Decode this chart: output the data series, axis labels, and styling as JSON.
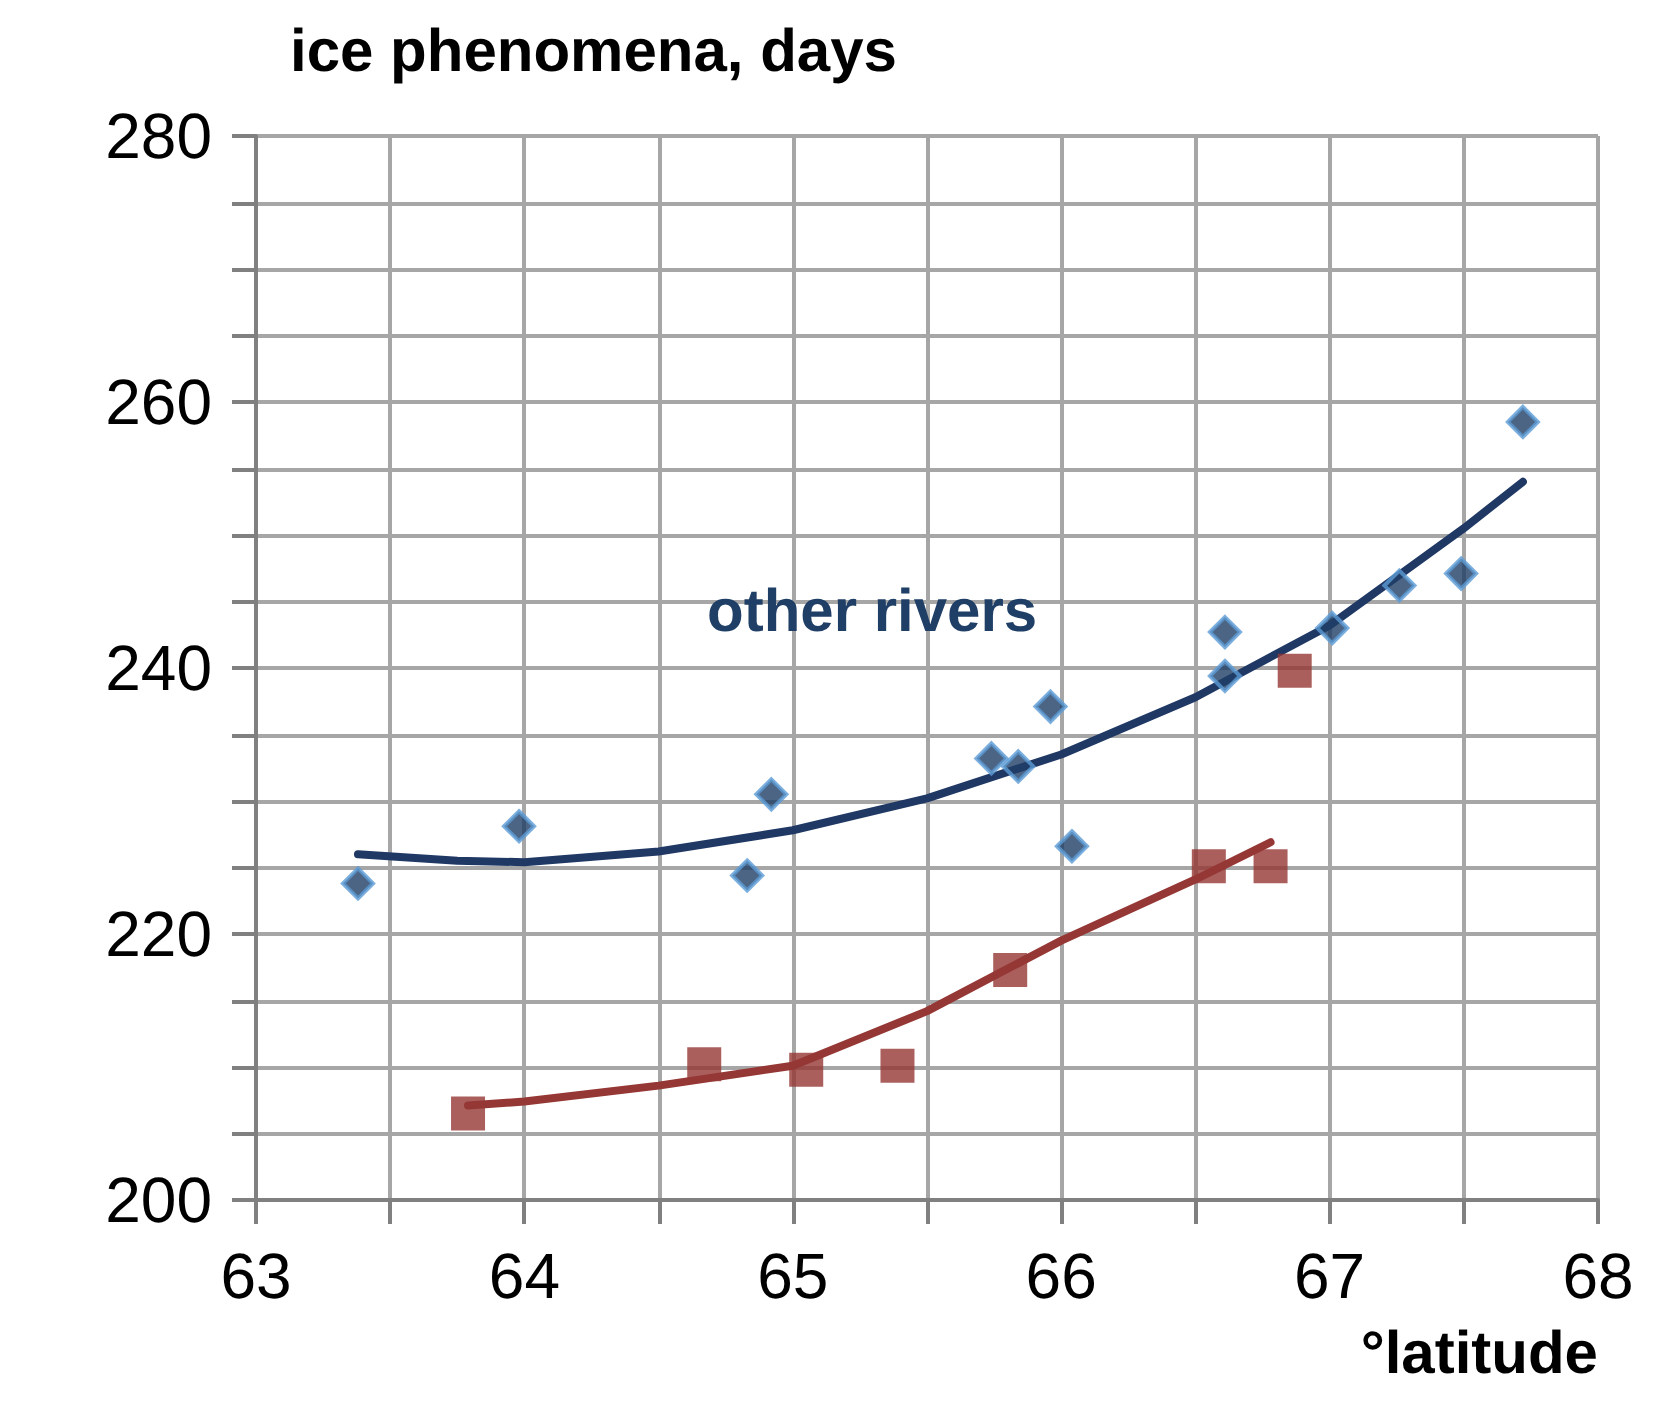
{
  "chart_data": {
    "type": "scatter",
    "title": "ice phenomena, days",
    "xlabel": "°latitude",
    "grid": true,
    "legend": false,
    "xlim": [
      63,
      68
    ],
    "xticks": [
      63,
      {
        "value": 63.5,
        "label": null
      },
      64,
      {
        "value": 64.5,
        "label": null
      },
      65,
      {
        "value": 65.5,
        "label": null
      },
      66,
      {
        "value": 66.5,
        "label": null
      },
      67,
      {
        "value": 67.5,
        "label": null
      },
      68
    ],
    "ylim": [
      200,
      280
    ],
    "yticks": [
      200,
      {
        "value": 205,
        "label": null
      },
      {
        "value": 210,
        "label": null
      },
      {
        "value": 215,
        "label": null
      },
      220,
      {
        "value": 225,
        "label": null
      },
      {
        "value": 230,
        "label": null
      },
      {
        "value": 235,
        "label": null
      },
      240,
      {
        "value": 245,
        "label": null
      },
      {
        "value": 250,
        "label": null
      },
      {
        "value": 255,
        "label": null
      },
      260,
      {
        "value": 265,
        "label": null
      },
      {
        "value": 270,
        "label": null
      },
      {
        "value": 275,
        "label": null
      },
      280
    ],
    "series": [
      {
        "name": "other rivers",
        "type": "scatter",
        "marker": "diamond",
        "color": "#1f3f66",
        "x": [
          63.38,
          63.98,
          64.83,
          64.92,
          65.74,
          65.84,
          65.96,
          66.04,
          66.61,
          66.61,
          67.01,
          67.26,
          67.49,
          67.72
        ],
        "values": [
          223.8,
          228.1,
          224.4,
          230.5,
          233.2,
          232.6,
          237.1,
          226.6,
          242.7,
          239.4,
          243.0,
          246.2,
          247.1,
          258.5
        ]
      },
      {
        "type": "scatter",
        "marker": "square",
        "color": "#953735",
        "x": [
          63.79,
          64.67,
          65.05,
          65.39,
          65.81,
          66.55,
          66.78,
          66.87
        ],
        "values": [
          206.5,
          210.2,
          209.8,
          210.1,
          217.3,
          225.1,
          225.1,
          239.8
        ]
      },
      {
        "type": "line",
        "marker": "none",
        "color": "#1f3864",
        "x": [
          63.38,
          63.75,
          64,
          64.5,
          65,
          65.5,
          66,
          66.5,
          67,
          67.5,
          67.72
        ],
        "values": [
          226.0,
          225.5,
          225.4,
          226.2,
          227.8,
          230.2,
          233.5,
          237.8,
          243.2,
          250.5,
          254.0
        ]
      },
      {
        "type": "line",
        "marker": "none",
        "color": "#953735",
        "x": [
          63.79,
          64,
          64.5,
          65,
          65.5,
          66,
          66.5,
          66.78
        ],
        "values": [
          207.1,
          207.4,
          208.6,
          210.1,
          214.2,
          219.5,
          224.1,
          226.9
        ]
      }
    ]
  }
}
